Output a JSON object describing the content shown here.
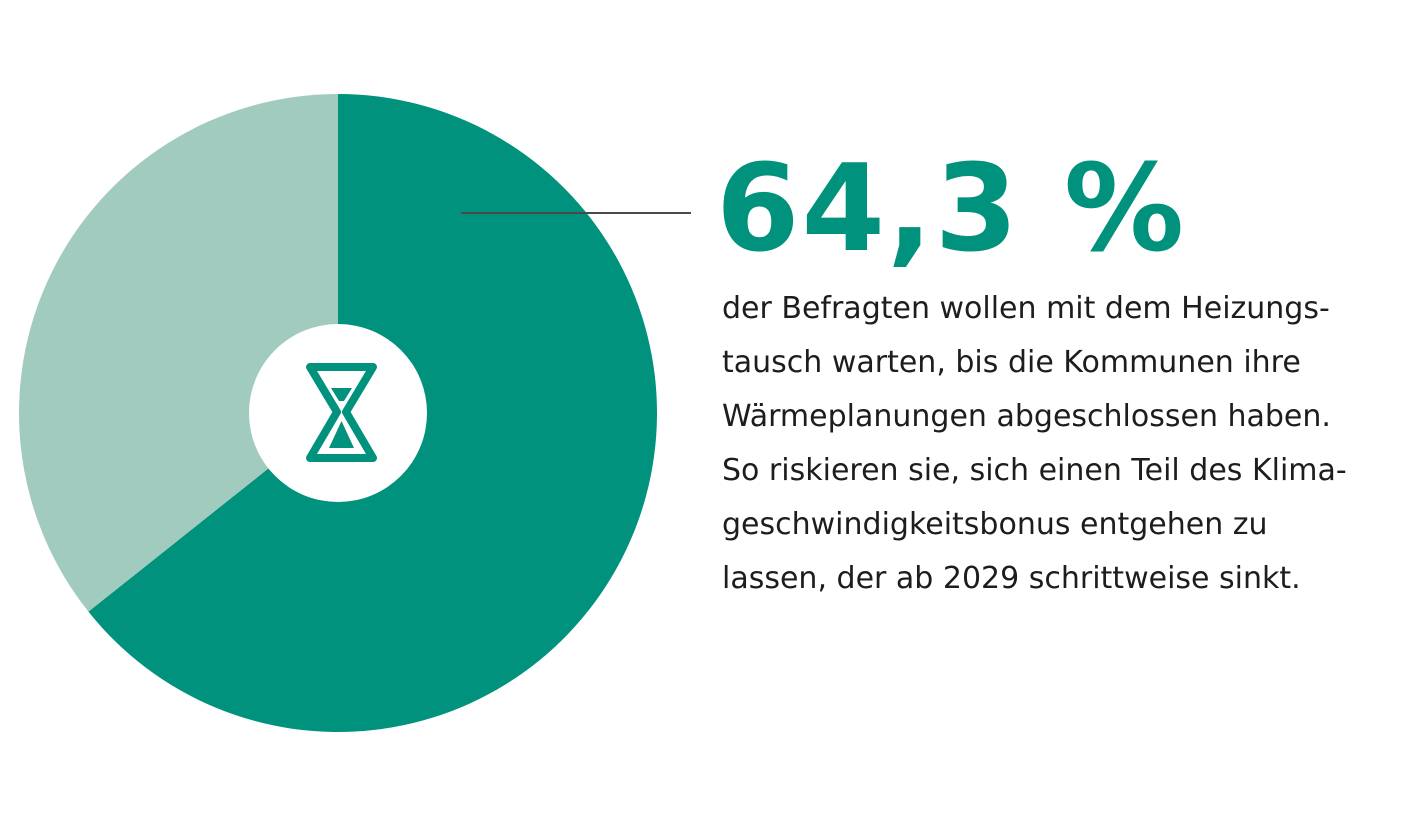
{
  "chart_data": {
    "type": "pie",
    "donut": true,
    "slices": [
      {
        "value": 64.3,
        "color": "#00927c"
      },
      {
        "value": 35.7,
        "color": "#a2cbbf"
      }
    ],
    "highlight_label": "64,3 %",
    "center_icon": "hourglass-icon",
    "annotation_lines": [
      "der Befragten wollen mit dem Heizungs-",
      "tausch warten, bis die Kommunen ihre",
      "Wärmeplanungen abgeschlossen haben.",
      "So riskieren sie, sich einen Teil des Klima-",
      "geschwindigkeitsbonus entgehen zu",
      "lassen, der ab 2029 schrittweise sinkt."
    ]
  },
  "colors": {
    "accent": "#00927c",
    "accent_light": "#a2cbbf",
    "text": "#1d1d1b",
    "leader_line": "#4a4a4a"
  }
}
